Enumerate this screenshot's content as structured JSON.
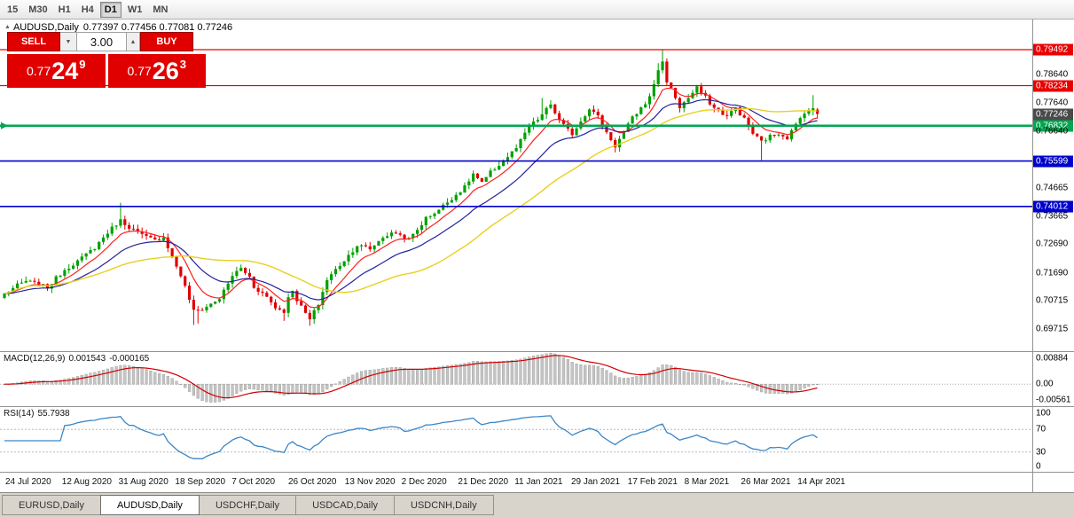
{
  "toolbar": {
    "timeframes": [
      "15",
      "M30",
      "H1",
      "H4",
      "D1",
      "W1",
      "MN"
    ],
    "selected": "D1"
  },
  "chart": {
    "title": "AUDUSD,Daily",
    "ohlc": "0.77397 0.77456 0.77081 0.77246",
    "open": "0.77397",
    "high": "0.77456",
    "low": "0.77081",
    "close": "0.77246"
  },
  "icons": {
    "chart_marker": "▲",
    "dropdown_arrow": "▼",
    "stepper_up": "▲"
  },
  "trade_panel": {
    "sell_label": "SELL",
    "buy_label": "BUY",
    "volume": "3.00",
    "sell_price_prefix": "0.77",
    "sell_price_big": "24",
    "sell_price_pip": "9",
    "buy_price_prefix": "0.77",
    "buy_price_big": "26",
    "buy_price_pip": "3"
  },
  "price_axis": {
    "labels": [
      {
        "text": "0.79492",
        "price": 0.79492,
        "style": "red"
      },
      {
        "text": "0.78640",
        "price": 0.7864,
        "style": "plain"
      },
      {
        "text": "0.78234",
        "price": 0.78234,
        "style": "red"
      },
      {
        "text": "0.77640",
        "price": 0.7764,
        "style": "plain"
      },
      {
        "text": "0.77246",
        "price": 0.77246,
        "style": "current"
      },
      {
        "text": "0.76832",
        "price": 0.76832,
        "style": "green"
      },
      {
        "text": "0.76640",
        "price": 0.7664,
        "style": "plain"
      },
      {
        "text": "0.75599",
        "price": 0.75599,
        "style": "blue"
      },
      {
        "text": "0.74665",
        "price": 0.74665,
        "style": "plain"
      },
      {
        "text": "0.74012",
        "price": 0.74012,
        "style": "blue"
      },
      {
        "text": "0.73665",
        "price": 0.73665,
        "style": "plain"
      },
      {
        "text": "0.72690",
        "price": 0.7269,
        "style": "plain"
      },
      {
        "text": "0.71690",
        "price": 0.7169,
        "style": "plain"
      },
      {
        "text": "0.70715",
        "price": 0.70715,
        "style": "plain"
      },
      {
        "text": "0.69715",
        "price": 0.69715,
        "style": "plain"
      }
    ]
  },
  "levels": [
    {
      "price": 0.79492,
      "color": "#e80000",
      "width": 1.2,
      "arrow": false
    },
    {
      "price": 0.78234,
      "color": "#e80000",
      "width": 1.2,
      "arrow": false
    },
    {
      "price": 0.76832,
      "color": "#00a651",
      "width": 2.6,
      "arrow": true
    },
    {
      "price": 0.75599,
      "color": "#0000cc",
      "width": 1.6,
      "arrow": false
    },
    {
      "price": 0.74012,
      "color": "#0000cc",
      "width": 1.6,
      "arrow": false
    }
  ],
  "indicators": {
    "macd": {
      "label": "MACD(12,26,9)",
      "value_main": "0.001543",
      "value_signal": "-0.000165",
      "axis": [
        {
          "text": "0.00884",
          "value": 0.00884
        },
        {
          "text": "0.00",
          "value": 0
        },
        {
          "text": "-0.00561",
          "value": -0.00561
        }
      ]
    },
    "rsi": {
      "label": "RSI(14)",
      "value": "55.7938",
      "axis": [
        {
          "text": "100",
          "value": 100
        },
        {
          "text": "70",
          "value": 70
        },
        {
          "text": "30",
          "value": 30
        },
        {
          "text": "0",
          "value": 0
        }
      ],
      "levels": [
        70,
        30
      ]
    }
  },
  "time_axis": {
    "labels": [
      "24 Jul 2020",
      "12 Aug 2020",
      "31 Aug 2020",
      "18 Sep 2020",
      "7 Oct 2020",
      "26 Oct 2020",
      "13 Nov 2020",
      "2 Dec 2020",
      "21 Dec 2020",
      "11 Jan 2021",
      "29 Jan 2021",
      "17 Feb 2021",
      "8 Mar 2021",
      "26 Mar 2021",
      "14 Apr 2021"
    ]
  },
  "tabs": {
    "items": [
      "EURUSD,Daily",
      "AUDUSD,Daily",
      "USDCHF,Daily",
      "USDCAD,Daily",
      "USDCNH,Daily"
    ],
    "selected_index": 1
  },
  "colors": {
    "up": "#00a000",
    "down": "#e00000",
    "ma_fast": "#ff2020",
    "ma_mid": "#24249c",
    "ma_slow": "#e8d020",
    "macd_hist": "#c4c4c4",
    "macd_hist_stroke": "#9a9a9a",
    "macd_signal": "#d00000",
    "rsi_line": "#3a87c8",
    "guide": "#b8b8b8",
    "level_red": "#e80000",
    "level_blue": "#0000cc",
    "level_green": "#00a651",
    "badge_current": "#4a4a4a"
  },
  "chart_data": {
    "type": "candlestick",
    "symbol": "AUDUSD",
    "timeframe": "Daily",
    "candle_count": 190,
    "y_range": [
      0.6895,
      0.80546
    ],
    "close_anchors": [
      [
        0,
        0.7095
      ],
      [
        3,
        0.7125
      ],
      [
        5,
        0.714
      ],
      [
        8,
        0.7128
      ],
      [
        10,
        0.7118
      ],
      [
        12,
        0.715
      ],
      [
        14,
        0.718
      ],
      [
        16,
        0.72
      ],
      [
        18,
        0.722
      ],
      [
        21,
        0.7258
      ],
      [
        24,
        0.731
      ],
      [
        26,
        0.734
      ],
      [
        27,
        0.7352
      ],
      [
        29,
        0.733
      ],
      [
        32,
        0.73
      ],
      [
        35,
        0.7282
      ],
      [
        37,
        0.7295
      ],
      [
        39,
        0.7225
      ],
      [
        41,
        0.716
      ],
      [
        42,
        0.712
      ],
      [
        44,
        0.7035
      ],
      [
        46,
        0.7042
      ],
      [
        48,
        0.706
      ],
      [
        50,
        0.708
      ],
      [
        52,
        0.713
      ],
      [
        53,
        0.716
      ],
      [
        55,
        0.7185
      ],
      [
        57,
        0.7155
      ],
      [
        58,
        0.712
      ],
      [
        60,
        0.7098
      ],
      [
        61,
        0.7085
      ],
      [
        63,
        0.7048
      ],
      [
        65,
        0.7035
      ],
      [
        66,
        0.708
      ],
      [
        67,
        0.711
      ],
      [
        68,
        0.7075
      ],
      [
        69,
        0.705
      ],
      [
        71,
        0.7005
      ],
      [
        73,
        0.706
      ],
      [
        75,
        0.7145
      ],
      [
        77,
        0.718
      ],
      [
        80,
        0.723
      ],
      [
        82,
        0.7265
      ],
      [
        84,
        0.7258
      ],
      [
        85,
        0.7252
      ],
      [
        87,
        0.728
      ],
      [
        88,
        0.7295
      ],
      [
        91,
        0.731
      ],
      [
        93,
        0.7292
      ],
      [
        94,
        0.7285
      ],
      [
        96,
        0.732
      ],
      [
        98,
        0.736
      ],
      [
        101,
        0.739
      ],
      [
        104,
        0.743
      ],
      [
        107,
        0.7468
      ],
      [
        109,
        0.7515
      ],
      [
        111,
        0.7482
      ],
      [
        113,
        0.752
      ],
      [
        116,
        0.756
      ],
      [
        119,
        0.7605
      ],
      [
        122,
        0.768
      ],
      [
        124,
        0.7705
      ],
      [
        125,
        0.7722
      ],
      [
        127,
        0.7758
      ],
      [
        129,
        0.77
      ],
      [
        131,
        0.7668
      ],
      [
        132,
        0.7655
      ],
      [
        134,
        0.77
      ],
      [
        136,
        0.7745
      ],
      [
        138,
        0.7715
      ],
      [
        140,
        0.766
      ],
      [
        142,
        0.7612
      ],
      [
        144,
        0.766
      ],
      [
        146,
        0.771
      ],
      [
        148,
        0.7745
      ],
      [
        150,
        0.7782
      ],
      [
        152,
        0.788
      ],
      [
        153,
        0.7905
      ],
      [
        154,
        0.784
      ],
      [
        156,
        0.7782
      ],
      [
        157,
        0.7748
      ],
      [
        159,
        0.778
      ],
      [
        161,
        0.7815
      ],
      [
        163,
        0.7782
      ],
      [
        165,
        0.7745
      ],
      [
        168,
        0.7716
      ],
      [
        170,
        0.7746
      ],
      [
        172,
        0.7706
      ],
      [
        174,
        0.7656
      ],
      [
        176,
        0.7628
      ],
      [
        178,
        0.7646
      ],
      [
        180,
        0.7658
      ],
      [
        182,
        0.7642
      ],
      [
        184,
        0.7686
      ],
      [
        186,
        0.7732
      ],
      [
        188,
        0.774
      ],
      [
        189,
        0.77246
      ]
    ],
    "wick_overrides": [
      {
        "i": 27,
        "h": 0.7414
      },
      {
        "i": 44,
        "l": 0.6987
      },
      {
        "i": 45,
        "l": 0.6992
      },
      {
        "i": 65,
        "l": 0.7001
      },
      {
        "i": 71,
        "l": 0.6984
      },
      {
        "i": 125,
        "h": 0.778
      },
      {
        "i": 142,
        "l": 0.759
      },
      {
        "i": 152,
        "h": 0.7902
      },
      {
        "i": 153,
        "h": 0.7949
      },
      {
        "i": 176,
        "l": 0.7563
      },
      {
        "i": 188,
        "h": 0.779
      }
    ],
    "last_candle": {
      "o": 0.77397,
      "h": 0.77456,
      "l": 0.77081,
      "c": 0.77246
    },
    "moving_averages": [
      {
        "name": "fast",
        "type": "ema",
        "period": 8,
        "color_key": "ma_fast"
      },
      {
        "name": "mid",
        "type": "ema",
        "period": 20,
        "color_key": "ma_mid"
      },
      {
        "name": "slow",
        "type": "sma",
        "period": 40,
        "color_key": "ma_slow"
      }
    ]
  }
}
